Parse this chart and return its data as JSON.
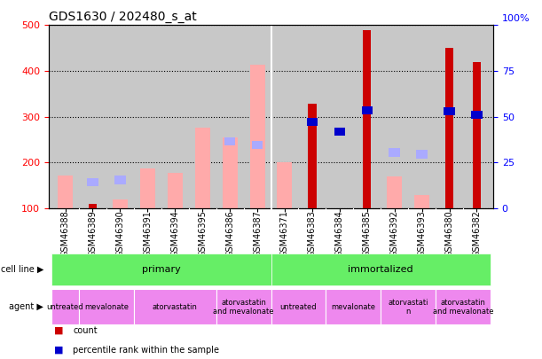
{
  "title": "GDS1630 / 202480_s_at",
  "samples": [
    "GSM46388",
    "GSM46389",
    "GSM46390",
    "GSM46391",
    "GSM46394",
    "GSM46395",
    "GSM46386",
    "GSM46387",
    "GSM46371",
    "GSM46383",
    "GSM46384",
    "GSM46385",
    "GSM46392",
    "GSM46393",
    "GSM46380",
    "GSM46382"
  ],
  "count": [
    null,
    110,
    null,
    null,
    null,
    null,
    null,
    null,
    null,
    328,
    null,
    490,
    null,
    null,
    450,
    420
  ],
  "percentile_rank": [
    null,
    null,
    null,
    null,
    null,
    null,
    null,
    null,
    null,
    280,
    258,
    305,
    null,
    null,
    303,
    295
  ],
  "value_absent": [
    172,
    null,
    120,
    186,
    178,
    277,
    254,
    413,
    200,
    null,
    null,
    null,
    170,
    128,
    null,
    null
  ],
  "rank_absent": [
    null,
    148,
    153,
    null,
    null,
    null,
    237,
    229,
    null,
    null,
    null,
    null,
    213,
    209,
    null,
    null
  ],
  "ylim": [
    100,
    500
  ],
  "y2lim": [
    0,
    100
  ],
  "left_yticks": [
    100,
    200,
    300,
    400,
    500
  ],
  "right_yticks": [
    0,
    25,
    50,
    75,
    100
  ],
  "color_count": "#cc0000",
  "color_percentile": "#0000cc",
  "color_value_absent": "#ffaaaa",
  "color_rank_absent": "#aaaaff",
  "cell_line_color": "#66ee66",
  "agent_color": "#ee88ee",
  "bg_color": "#c8c8c8",
  "agent_spans": [
    [
      0,
      1,
      "untreated"
    ],
    [
      1,
      3,
      "mevalonate"
    ],
    [
      3,
      6,
      "atorvastatin"
    ],
    [
      6,
      8,
      "atorvastatin\nand mevalonate"
    ],
    [
      8,
      10,
      "untreated"
    ],
    [
      10,
      12,
      "mevalonate"
    ],
    [
      12,
      14,
      "atorvastati\nn"
    ],
    [
      14,
      16,
      "atorvastatin\nand mevalonate"
    ]
  ]
}
